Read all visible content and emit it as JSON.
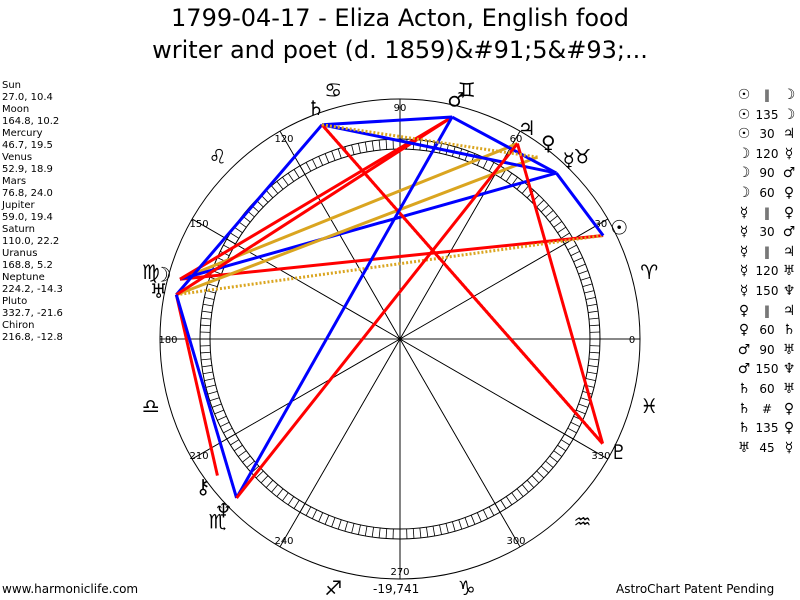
{
  "title_line1": "1799-04-17 - Eliza Acton, English food",
  "title_line2": "writer and poet (d. 1859)&#91;5&#93;...",
  "planets": [
    {
      "name": "Sun",
      "values": "27.0, 10.4",
      "glyph": "☉",
      "longitude": 27.0
    },
    {
      "name": "Moon",
      "values": "164.8, 10.2",
      "glyph": "☽",
      "longitude": 164.8
    },
    {
      "name": "Mercury",
      "values": "46.7, 19.5",
      "glyph": "☿",
      "longitude": 46.7
    },
    {
      "name": "Venus",
      "values": "52.9, 18.9",
      "glyph": "♀",
      "longitude": 52.9
    },
    {
      "name": "Mars",
      "values": "76.8, 24.0",
      "glyph": "♂",
      "longitude": 76.8
    },
    {
      "name": "Jupiter",
      "values": "59.0, 19.4",
      "glyph": "♃",
      "longitude": 59.0
    },
    {
      "name": "Saturn",
      "values": "110.0, 22.2",
      "glyph": "♄",
      "longitude": 110.0
    },
    {
      "name": "Uranus",
      "values": "168.8, 5.2",
      "glyph": "♅",
      "longitude": 168.8
    },
    {
      "name": "Neptune",
      "values": "224.2, -14.3",
      "glyph": "♆",
      "longitude": 224.2
    },
    {
      "name": "Pluto",
      "values": "332.7, -21.6",
      "glyph": "♇",
      "longitude": 332.7
    },
    {
      "name": "Chiron",
      "values": "216.8, -12.8",
      "glyph": "⚷",
      "longitude": 216.8
    }
  ],
  "aspects": [
    {
      "g1": "☉",
      "aspect": "‖",
      "g2": "☽"
    },
    {
      "g1": "☉",
      "aspect": "135",
      "g2": "☽"
    },
    {
      "g1": "☉",
      "aspect": "30",
      "g2": "♃"
    },
    {
      "g1": "☽",
      "aspect": "120",
      "g2": "☿"
    },
    {
      "g1": "☽",
      "aspect": "90",
      "g2": "♂"
    },
    {
      "g1": "☽",
      "aspect": "60",
      "g2": "♀"
    },
    {
      "g1": "☿",
      "aspect": "‖",
      "g2": "♀"
    },
    {
      "g1": "☿",
      "aspect": "30",
      "g2": "♂"
    },
    {
      "g1": "☿",
      "aspect": "‖",
      "g2": "♃"
    },
    {
      "g1": "☿",
      "aspect": "120",
      "g2": "♅"
    },
    {
      "g1": "☿",
      "aspect": "150",
      "g2": "♆"
    },
    {
      "g1": "♀",
      "aspect": "‖",
      "g2": "♃"
    },
    {
      "g1": "♀",
      "aspect": "60",
      "g2": "♄"
    },
    {
      "g1": "♂",
      "aspect": "90",
      "g2": "♅"
    },
    {
      "g1": "♂",
      "aspect": "150",
      "g2": "♆"
    },
    {
      "g1": "♄",
      "aspect": "60",
      "g2": "♅"
    },
    {
      "g1": "♄",
      "aspect": "#",
      "g2": "♀"
    },
    {
      "g1": "♄",
      "aspect": "135",
      "g2": "♀"
    },
    {
      "g1": "♅",
      "aspect": "45",
      "g2": "☿"
    }
  ],
  "degree_labels": [
    "0",
    "30",
    "60",
    "90",
    "120",
    "150",
    "180",
    "210",
    "240",
    "270",
    "300",
    "330"
  ],
  "zodiac_signs": [
    "♈",
    "♉",
    "♊",
    "♋",
    "♌",
    "♍",
    "♎",
    "♏",
    "♐",
    "♑",
    "♒",
    "♓"
  ],
  "aspect_lines": [
    {
      "from": "Sun",
      "to": "Moon",
      "color": "#ff0000",
      "style": "solid"
    },
    {
      "from": "Moon",
      "to": "Jupiter",
      "color": "#daa520",
      "style": "solid"
    },
    {
      "from": "Moon",
      "to": "Mercury",
      "color": "#0000ff",
      "style": "solid"
    },
    {
      "from": "Moon",
      "to": "Mars",
      "color": "#ff0000",
      "style": "solid"
    },
    {
      "from": "Uranus",
      "to": "Venus",
      "color": "#daa520",
      "style": "solid"
    },
    {
      "from": "Uranus",
      "to": "Sun",
      "color": "#daa520",
      "style": "dotted"
    },
    {
      "from": "Uranus",
      "to": "Saturn",
      "color": "#0000ff",
      "style": "solid"
    },
    {
      "from": "Uranus",
      "to": "Mars",
      "color": "#ff0000",
      "style": "solid"
    },
    {
      "from": "Uranus",
      "to": "Chiron",
      "color": "#ff0000",
      "style": "solid"
    },
    {
      "from": "Uranus",
      "to": "Neptune",
      "color": "#0000ff",
      "style": "solid"
    },
    {
      "from": "Saturn",
      "to": "Mars",
      "color": "#0000ff",
      "style": "solid"
    },
    {
      "from": "Saturn",
      "to": "Mercury",
      "color": "#0000ff",
      "style": "solid"
    },
    {
      "from": "Saturn",
      "to": "Pluto",
      "color": "#ff0000",
      "style": "solid"
    },
    {
      "from": "Saturn",
      "to": "Pluto",
      "color": "#ff0000",
      "style": "dotted"
    },
    {
      "from": "Mars",
      "to": "Mercury",
      "color": "#0000ff",
      "style": "solid"
    },
    {
      "from": "Mars",
      "to": "Neptune",
      "color": "#0000ff",
      "style": "solid"
    },
    {
      "from": "Mercury",
      "to": "Sun",
      "color": "#0000ff",
      "style": "solid"
    },
    {
      "from": "Jupiter",
      "to": "Pluto",
      "color": "#ff0000",
      "style": "solid"
    },
    {
      "from": "Jupiter",
      "to": "Neptune",
      "color": "#ff0000",
      "style": "solid"
    },
    {
      "from": "Venus",
      "to": "Saturn",
      "color": "#daa520",
      "style": "dotted"
    }
  ],
  "footer_left": "www.harmoniclife.com",
  "footer_center": "-19,741",
  "footer_right": "AstroChart Patent Pending"
}
